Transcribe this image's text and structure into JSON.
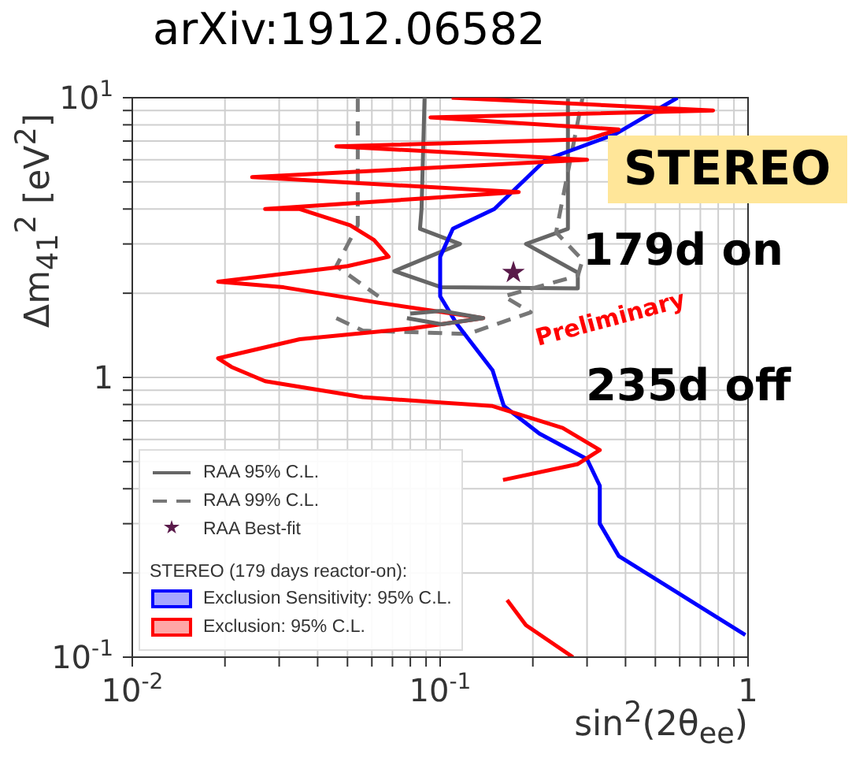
{
  "chart_data": {
    "type": "line",
    "title": "arXiv:1912.06582",
    "xlabel": "sin$^{2}$(2θ$_{ee}$)",
    "ylabel": "Δm$_{41}$$^{2}$ [eV$^{2}$]",
    "legend_title": "STEREO (179 days reactor-on):",
    "annotations": [
      "STEREO",
      "179d on",
      "235d off",
      "Preliminary"
    ],
    "log": "xy",
    "grid": true,
    "legend": "bottom left",
    "marker": "none",
    "xlim": [
      0.01,
      1
    ],
    "xticks": [
      {
        "value": 0.01,
        "label": "10$^{-2}$"
      },
      {
        "value": 0.02,
        "label": null
      },
      {
        "value": 0.03,
        "label": null
      },
      {
        "value": 0.04,
        "label": null
      },
      {
        "value": 0.05,
        "label": null
      },
      {
        "value": 0.06,
        "label": null
      },
      {
        "value": 0.07,
        "label": null
      },
      {
        "value": 0.08,
        "label": null
      },
      {
        "value": 0.09,
        "label": null
      },
      {
        "value": 0.1,
        "label": "10$^{-1}$"
      },
      {
        "value": 0.2,
        "label": null
      },
      {
        "value": 0.3,
        "label": null
      },
      {
        "value": 0.4,
        "label": null
      },
      {
        "value": 0.5,
        "label": null
      },
      {
        "value": 0.6,
        "label": null
      },
      {
        "value": 0.7,
        "label": null
      },
      {
        "value": 0.8,
        "label": null
      },
      {
        "value": 0.9,
        "label": null
      },
      1
    ],
    "ylim": [
      0.1,
      10
    ],
    "yticks": [
      {
        "value": 0.1,
        "label": "10$^{-1}$"
      },
      {
        "value": 0.2,
        "label": null
      },
      {
        "value": 0.3,
        "label": null
      },
      {
        "value": 0.4,
        "label": null
      },
      {
        "value": 0.5,
        "label": null
      },
      {
        "value": 0.6,
        "label": null
      },
      {
        "value": 0.7,
        "label": null
      },
      {
        "value": 0.8,
        "label": null
      },
      {
        "value": 0.9,
        "label": null
      },
      1,
      {
        "value": 2,
        "label": null
      },
      {
        "value": 3,
        "label": null
      },
      {
        "value": 4,
        "label": null
      },
      {
        "value": 5,
        "label": null
      },
      {
        "value": 6,
        "label": null
      },
      {
        "value": 7,
        "label": null
      },
      {
        "value": 8,
        "label": null
      },
      {
        "value": 9,
        "label": null
      },
      {
        "value": 10,
        "label": "10$^{1}$"
      }
    ],
    "series": [
      {
        "name": "RAA 95% C.L.",
        "color": "#666666",
        "line_style": "solid",
        "x": [
          0.089,
          0.087,
          0.086,
          0.116,
          0.071,
          0.101,
          0.28,
          0.28,
          0.19,
          0.26,
          0.26
        ],
        "values": [
          10,
          4.0,
          3.4,
          3.0,
          2.4,
          2.1,
          2.08,
          2.37,
          3.0,
          3.4,
          10
        ]
      },
      {
        "name": "RAA 99% C.L.",
        "color": "#777777",
        "line_style": "dashed",
        "x": [
          0.054,
          0.054,
          0.046,
          0.063,
          null,
          0.046,
          0.056,
          0.123,
          0.197,
          0.161,
          0.28,
          0.29,
          0.238,
          0.29
        ],
        "values": [
          10,
          3.5,
          2.5,
          1.95,
          null,
          1.63,
          1.47,
          1.43,
          1.71,
          1.95,
          2.31,
          2.63,
          3.3,
          10
        ]
      },
      {
        "name": "RAA Best-fit",
        "type": "scatter",
        "marker": "star",
        "color": "#5a1a4a",
        "x": [
          0.173
        ],
        "values": [
          2.37
        ]
      },
      {
        "name": "Exclusion Sensitivity: 95% C.L.",
        "color": "#0000ff",
        "line_style": "solid",
        "x": [
          0.59,
          0.37,
          0.22,
          0.15,
          0.11,
          0.1,
          0.1,
          0.113,
          0.148,
          0.161,
          0.21,
          0.3,
          0.33,
          0.33,
          0.38,
          0.59,
          0.98
        ],
        "values": [
          10,
          7.4,
          6.0,
          4.0,
          3.4,
          2.7,
          1.95,
          1.56,
          1.06,
          0.79,
          0.63,
          0.51,
          0.41,
          0.3,
          0.23,
          0.17,
          0.12
        ]
      },
      {
        "name": "Exclusion: 95% C.L.",
        "color": "#ff0000",
        "line_style": "solid",
        "x": [
          0.109,
          0.77,
          0.093,
          0.38,
          0.3,
          0.046,
          0.3,
          0.0245,
          0.18,
          0.027,
          0.035,
          0.051,
          0.061,
          0.068,
          0.05,
          0.019,
          0.031,
          0.063,
          0.138,
          0.082,
          0.035,
          0.019,
          0.021,
          0.027,
          0.056,
          0.148,
          0.25,
          0.33,
          0.28,
          0.16,
          null,
          0.165,
          0.19,
          0.27
        ],
        "values": [
          10,
          9.0,
          8.5,
          7.7,
          7.1,
          6.7,
          6.0,
          5.2,
          4.6,
          4.0,
          4.0,
          3.5,
          3.1,
          2.7,
          2.5,
          2.2,
          2.1,
          1.85,
          1.63,
          1.5,
          1.37,
          1.17,
          1.09,
          0.97,
          0.85,
          0.79,
          0.66,
          0.55,
          0.49,
          0.43,
          null,
          0.16,
          0.13,
          0.1
        ]
      },
      {
        "color": "#666666",
        "line_style": "solid",
        "x": [
          0.08,
          0.101,
          0.138,
          0.101,
          0.078
        ],
        "values": [
          1.69,
          1.73,
          1.63,
          1.55,
          1.63
        ]
      }
    ]
  }
}
